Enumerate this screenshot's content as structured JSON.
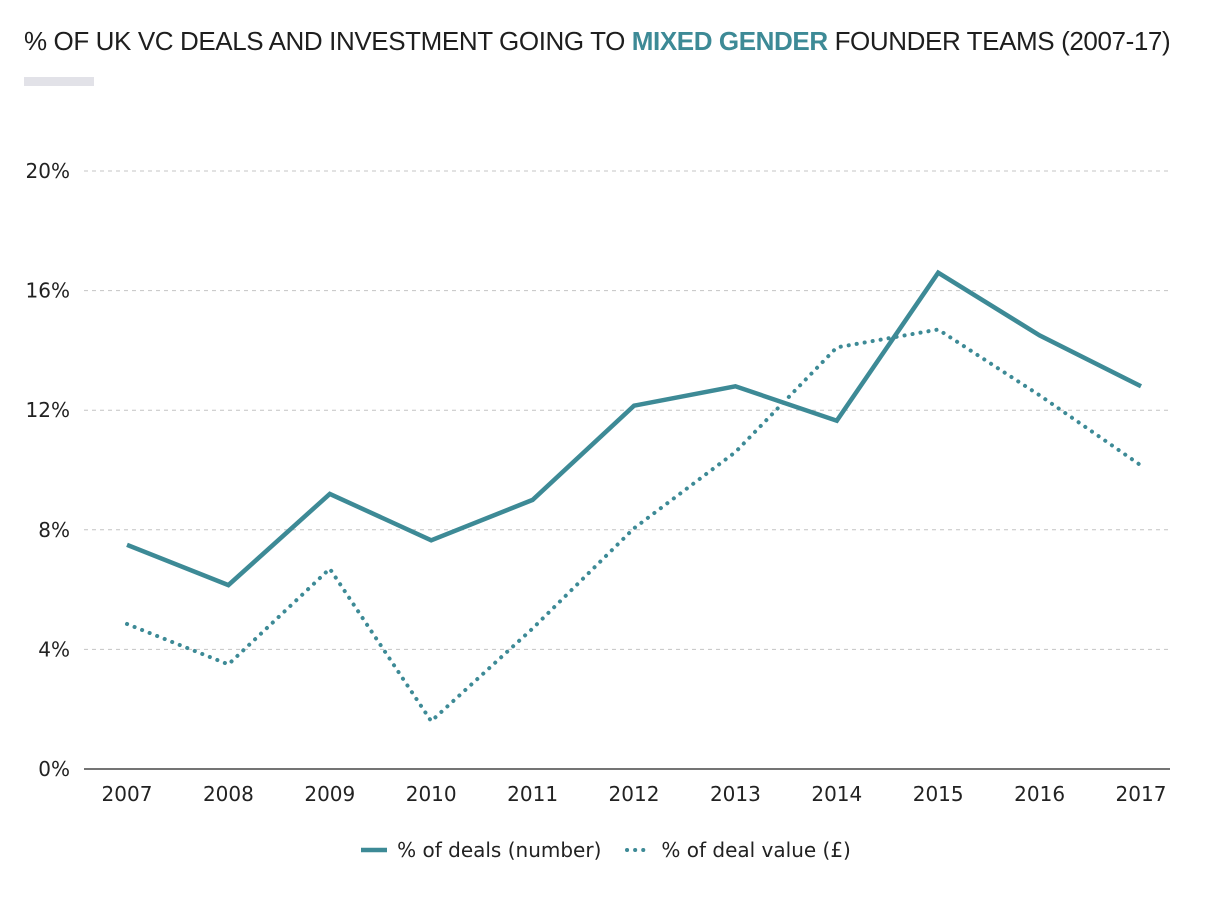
{
  "title": {
    "prefix": "% OF UK VC DEALS AND INVESTMENT GOING TO ",
    "highlight": "MIXED GENDER",
    "suffix": " FOUNDER TEAMS (2007-17)"
  },
  "colors": {
    "accent": "#3d8a96",
    "grid": "#c4c4c4",
    "axis": "#222222",
    "title_bar": "#e2e2e8"
  },
  "chart_data": {
    "type": "line",
    "title": "% OF UK VC DEALS AND INVESTMENT GOING TO MIXED GENDER FOUNDER TEAMS (2007-17)",
    "xlabel": "",
    "ylabel": "",
    "x": [
      "2007",
      "2008",
      "2009",
      "2010",
      "2011",
      "2012",
      "2013",
      "2014",
      "2015",
      "2016",
      "2017"
    ],
    "ylim": [
      0,
      20
    ],
    "yticks": [
      0,
      4,
      8,
      12,
      16,
      20
    ],
    "ytick_labels": [
      "0%",
      "4%",
      "8%",
      "12%",
      "16%",
      "20%"
    ],
    "grid": true,
    "legend_position": "bottom-center",
    "series": [
      {
        "name": "% of deals (number)",
        "style": "solid",
        "values": [
          7.5,
          6.15,
          9.2,
          7.65,
          9.0,
          12.15,
          12.8,
          11.65,
          16.6,
          14.5,
          12.8
        ]
      },
      {
        "name": "% of deal value (£)",
        "style": "dotted",
        "values": [
          4.85,
          3.5,
          6.7,
          1.6,
          4.7,
          8.05,
          10.6,
          14.1,
          14.7,
          12.5,
          10.15
        ]
      }
    ]
  }
}
